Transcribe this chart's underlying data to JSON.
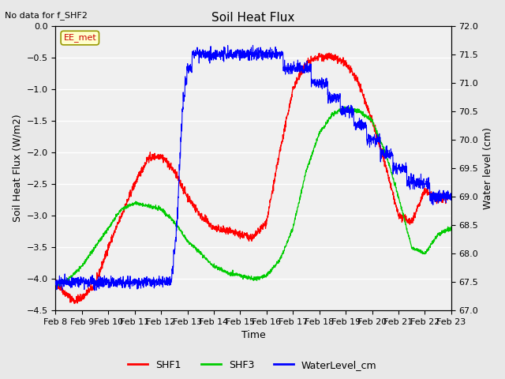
{
  "title": "Soil Heat Flux",
  "subtitle": "No data for f_SHF2",
  "xlabel": "Time",
  "ylabel_left": "Soil Heat Flux (W/m2)",
  "ylabel_right": "Water level (cm)",
  "ylim_left": [
    -4.5,
    0.0
  ],
  "ylim_right": [
    67.0,
    72.0
  ],
  "yticks_left": [
    0.0,
    -0.5,
    -1.0,
    -1.5,
    -2.0,
    -2.5,
    -3.0,
    -3.5,
    -4.0,
    -4.5
  ],
  "yticks_right": [
    67.0,
    67.5,
    68.0,
    68.5,
    69.0,
    69.5,
    70.0,
    70.5,
    71.0,
    71.5,
    72.0
  ],
  "date_labels": [
    "Feb 8",
    "Feb 9",
    "Feb 10",
    "Feb 11",
    "Feb 12",
    "Feb 13",
    "Feb 14",
    "Feb 15",
    "Feb 16",
    "Feb 17",
    "Feb 18",
    "Feb 19",
    "Feb 20",
    "Feb 21",
    "Feb 22",
    "Feb 23"
  ],
  "box_label": "EE_met",
  "legend_entries": [
    "SHF1",
    "SHF3",
    "WaterLevel_cm"
  ],
  "legend_colors": [
    "#ff0000",
    "#00cc00",
    "#0000ff"
  ],
  "background_color": "#e8e8e8",
  "plot_bg_color": "#f0f0f0",
  "grid_color": "#ffffff",
  "shf1_color": "#ff0000",
  "shf3_color": "#00cc00",
  "water_color": "#0000ff",
  "shf1_knots_t": [
    0,
    0.3,
    0.7,
    1.0,
    1.5,
    2.0,
    2.5,
    3.0,
    3.5,
    4.0,
    4.5,
    5.0,
    5.5,
    6.0,
    6.5,
    7.0,
    7.5,
    8.0,
    8.5,
    9.0,
    9.5,
    10.0,
    10.5,
    11.0,
    11.5,
    12.0,
    12.5,
    13.0,
    13.5,
    14.0,
    14.5,
    15.0
  ],
  "shf1_knots_v": [
    -4.05,
    -4.2,
    -4.35,
    -4.3,
    -4.1,
    -3.5,
    -3.0,
    -2.5,
    -2.1,
    -2.05,
    -2.3,
    -2.7,
    -3.0,
    -3.2,
    -3.25,
    -3.3,
    -3.35,
    -3.1,
    -2.0,
    -1.0,
    -0.6,
    -0.48,
    -0.5,
    -0.6,
    -0.9,
    -1.5,
    -2.2,
    -3.0,
    -3.1,
    -2.6,
    -2.75,
    -2.7
  ],
  "shf3_knots_t": [
    0,
    0.5,
    1.0,
    1.5,
    2.0,
    2.5,
    3.0,
    3.5,
    4.0,
    4.5,
    5.0,
    5.5,
    6.0,
    6.5,
    7.0,
    7.5,
    8.0,
    8.5,
    9.0,
    9.5,
    10.0,
    10.5,
    11.0,
    11.5,
    12.0,
    12.5,
    13.0,
    13.5,
    14.0,
    14.5,
    15.0
  ],
  "shf3_knots_v": [
    -4.1,
    -4.0,
    -3.8,
    -3.5,
    -3.2,
    -2.9,
    -2.8,
    -2.85,
    -2.9,
    -3.1,
    -3.4,
    -3.6,
    -3.8,
    -3.9,
    -3.95,
    -4.0,
    -3.95,
    -3.7,
    -3.2,
    -2.3,
    -1.7,
    -1.4,
    -1.3,
    -1.35,
    -1.5,
    -2.0,
    -2.7,
    -3.5,
    -3.6,
    -3.3,
    -3.2
  ],
  "water_knots_t": [
    0,
    0.3,
    0.5,
    0.7,
    1.0,
    1.5,
    2.0,
    2.5,
    3.0,
    3.5,
    4.0,
    4.2,
    4.4,
    4.5,
    4.6,
    4.7,
    4.8,
    5.0,
    5.2,
    5.5,
    6.0,
    6.5,
    7.0,
    7.5,
    8.0,
    8.5,
    9.0,
    9.5,
    10.0,
    10.5,
    11.0,
    11.5,
    12.0,
    12.5,
    13.0,
    13.5,
    14.0,
    14.5,
    15.0
  ],
  "water_knots_v": [
    67.5,
    67.45,
    67.4,
    67.4,
    67.5,
    67.5,
    67.5,
    67.5,
    67.5,
    67.5,
    67.5,
    67.5,
    67.6,
    68.0,
    68.5,
    69.5,
    70.5,
    71.2,
    71.4,
    71.5,
    71.5,
    71.4,
    71.5,
    71.5,
    71.5,
    71.4,
    71.3,
    71.2,
    71.0,
    70.8,
    70.5,
    70.3,
    70.0,
    69.8,
    69.5,
    69.3,
    69.2,
    69.0,
    69.0
  ]
}
